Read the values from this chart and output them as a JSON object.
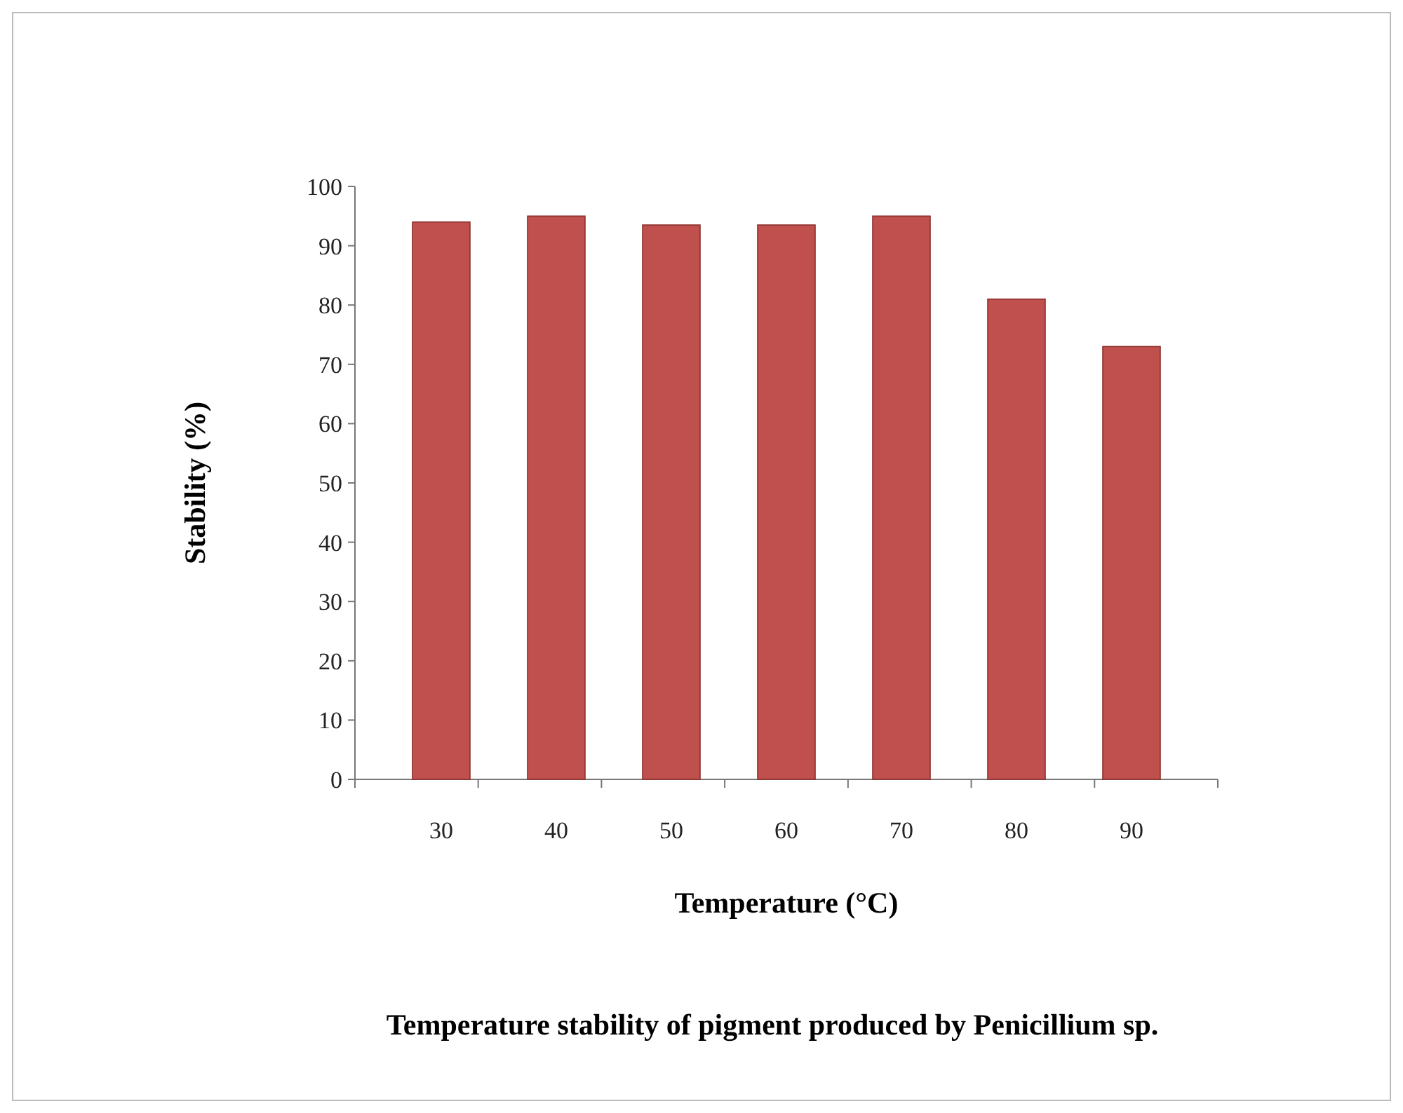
{
  "chart_data": {
    "type": "bar",
    "title": "Temperature stability of pigment produced by Penicillium sp.",
    "xlabel": "Temperature (°C)",
    "ylabel": "Stability (%)",
    "categories": [
      "30",
      "40",
      "50",
      "60",
      "70",
      "80",
      "90"
    ],
    "values": [
      94,
      95,
      93.5,
      93.5,
      95,
      81,
      73
    ],
    "color": "#c0504d",
    "ylim": [
      0,
      100
    ],
    "yticks": [
      0,
      10,
      20,
      30,
      40,
      50,
      60,
      70,
      80,
      90,
      100
    ],
    "grid": false
  }
}
